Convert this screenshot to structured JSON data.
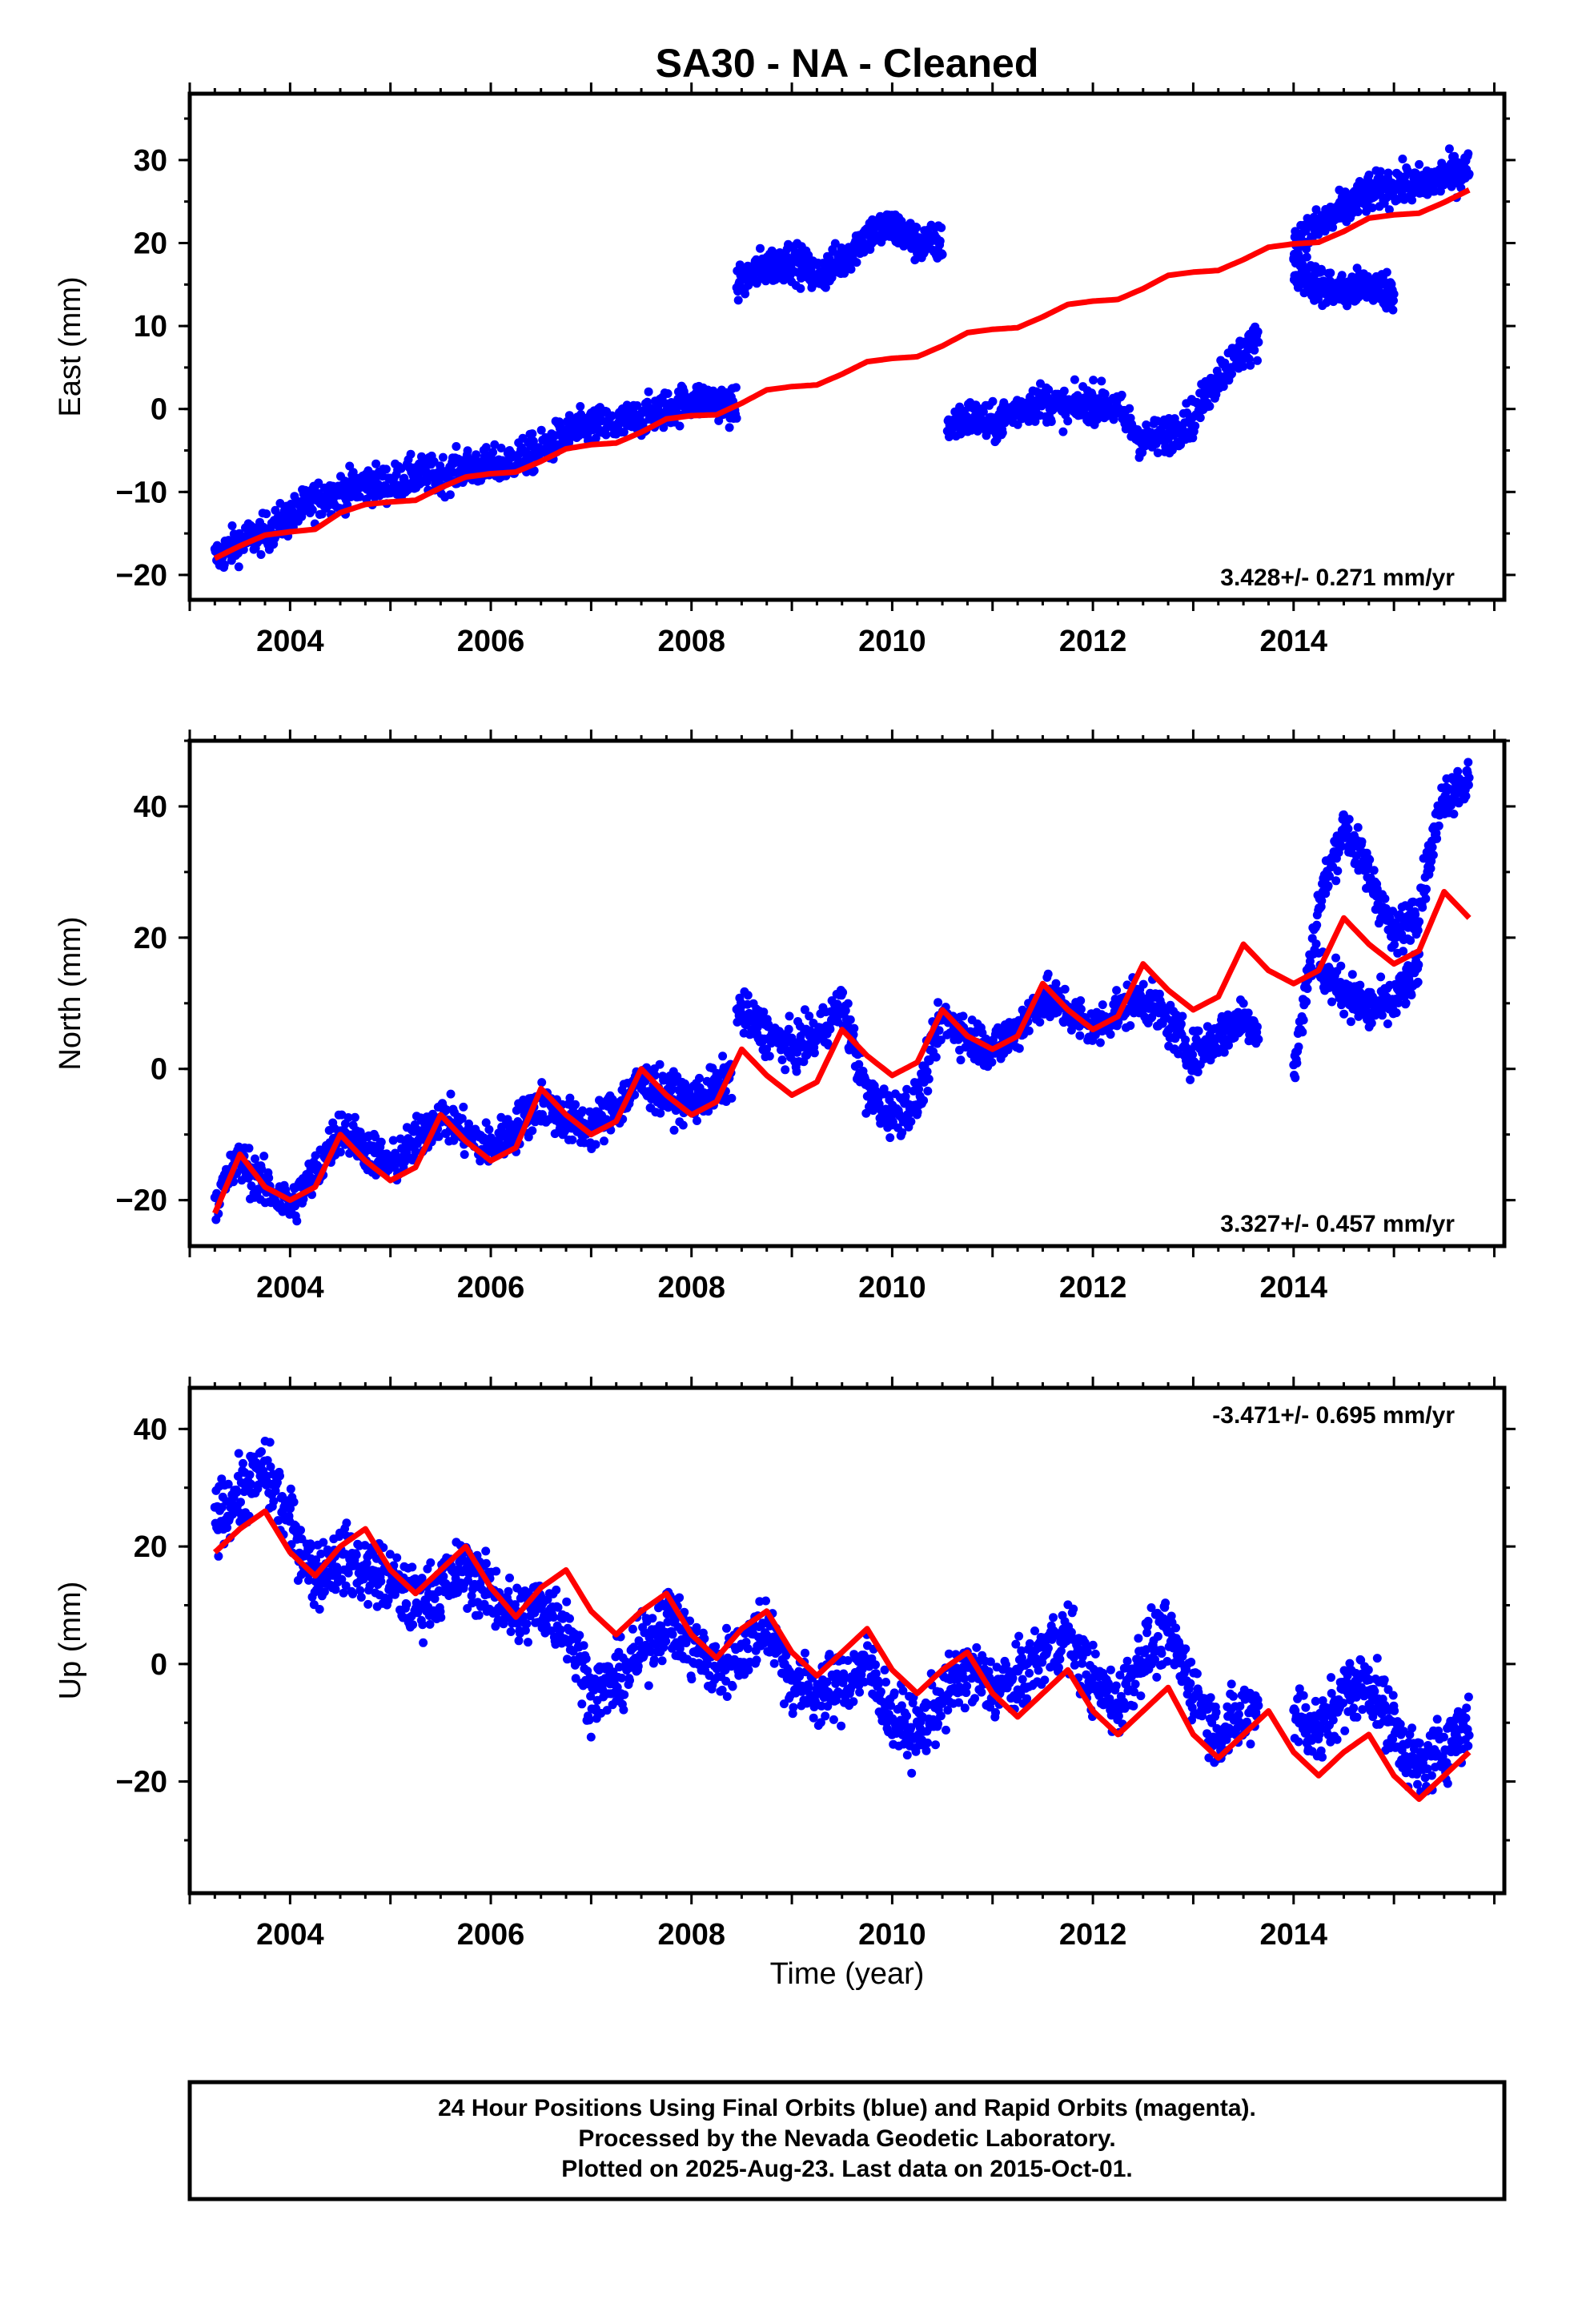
{
  "title": "SA30  - NA - Cleaned",
  "xlabel": "Time (year)",
  "footer": {
    "line1": "24 Hour Positions Using Final Orbits (blue) and Rapid Orbits (magenta).",
    "line2": "Processed by the Nevada Geodetic Laboratory.",
    "line3": "Plotted on 2025-Aug-23. Last data on 2015-Oct-01."
  },
  "colors": {
    "data": "#0000ff",
    "model": "#ff0000",
    "axes": "#000000"
  },
  "chart_data": [
    {
      "type": "scatter",
      "ylabel": "East (mm)",
      "rate": "3.428+/- 0.271 mm/yr",
      "xlim": [
        2003.0,
        2016.1
      ],
      "ylim": [
        -23,
        38
      ],
      "xticks": [
        2004,
        2006,
        2008,
        2010,
        2012,
        2014
      ],
      "yticks": [
        -20,
        -10,
        0,
        10,
        20,
        30
      ],
      "grid": false,
      "series": [
        {
          "role": "data",
          "segments": [
            {
              "x": [
                2003.25,
                2003.5,
                2003.75,
                2004.0,
                2004.25,
                2004.5,
                2004.75,
                2005.0,
                2005.25,
                2005.5,
                2005.75,
                2006.0,
                2006.25,
                2006.5,
                2006.75,
                2007.0,
                2007.25,
                2007.5,
                2007.75,
                2008.0,
                2008.25,
                2008.45
              ],
              "y": [
                -18,
                -16,
                -15,
                -13,
                -11,
                -10,
                -9,
                -9,
                -8,
                -8,
                -7,
                -7,
                -6,
                -5,
                -3,
                -2,
                -2,
                -1,
                0,
                1,
                1,
                0
              ]
            },
            {
              "x": [
                2008.45,
                2008.7,
                2009.0,
                2009.25,
                2009.5,
                2009.75,
                2010.0,
                2010.25,
                2010.5
              ],
              "y": [
                15,
                17,
                18,
                16,
                18,
                21,
                22,
                20,
                20
              ]
            },
            {
              "x": [
                2010.55,
                2010.8,
                2011.0,
                2011.25,
                2011.5,
                2011.75,
                2012.0,
                2012.25,
                2012.5,
                2012.75,
                2013.0,
                2013.25,
                2013.5,
                2013.65
              ],
              "y": [
                -2,
                -1,
                -2,
                0,
                1,
                0,
                1,
                0,
                -4,
                -3,
                -1,
                4,
                7,
                8
              ]
            },
            {
              "x": [
                2014.0,
                2014.25,
                2014.5,
                2014.75,
                2015.0,
                2015.25,
                2015.5,
                2015.75
              ],
              "y": [
                20,
                22,
                24,
                26,
                27,
                27,
                28,
                29
              ]
            },
            {
              "x": [
                2014.0,
                2014.25,
                2014.5,
                2014.75,
                2015.0
              ],
              "y": [
                17,
                15,
                14,
                15,
                14
              ]
            }
          ]
        },
        {
          "role": "model",
          "x": [
            2003.25,
            2003.5,
            2003.75,
            2004.0,
            2004.25,
            2004.5,
            2004.75,
            2005.0,
            2005.25,
            2005.5,
            2005.75,
            2006.0,
            2006.25,
            2006.5,
            2006.75,
            2007.0,
            2007.25,
            2007.5,
            2007.75,
            2008.0,
            2008.25,
            2008.5,
            2008.75,
            2009.0,
            2009.25,
            2009.5,
            2009.75,
            2010.0,
            2010.25,
            2010.5,
            2010.75,
            2011.0,
            2011.25,
            2011.5,
            2011.75,
            2012.0,
            2012.25,
            2012.5,
            2012.75,
            2013.0,
            2013.25,
            2013.5,
            2013.75,
            2014.0,
            2014.25,
            2014.5,
            2014.75,
            2015.0,
            2015.25,
            2015.5,
            2015.75
          ],
          "y": [
            -18,
            -16.5,
            -15.2,
            -14.8,
            -14.5,
            -12.5,
            -11.5,
            -11.2,
            -11,
            -9.5,
            -8.2,
            -7.8,
            -7.6,
            -6.3,
            -4.8,
            -4.3,
            -4.1,
            -2.8,
            -1.2,
            -0.8,
            -0.7,
            0.7,
            2.3,
            2.7,
            2.9,
            4.2,
            5.7,
            6.1,
            6.3,
            7.6,
            9.2,
            9.6,
            9.8,
            11.1,
            12.6,
            13,
            13.2,
            14.5,
            16.1,
            16.5,
            16.7,
            18,
            19.5,
            19.9,
            20.1,
            21.4,
            23,
            23.4,
            23.6,
            24.9,
            26.4
          ]
        }
      ]
    },
    {
      "type": "scatter",
      "ylabel": "North (mm)",
      "rate": "3.327+/- 0.457 mm/yr",
      "xlim": [
        2003.0,
        2016.1
      ],
      "ylim": [
        -27,
        50
      ],
      "xticks": [
        2004,
        2006,
        2008,
        2010,
        2012,
        2014
      ],
      "yticks": [
        -20,
        0,
        20,
        40
      ],
      "grid": false,
      "series": [
        {
          "role": "data",
          "segments": [
            {
              "x": [
                2003.25,
                2003.5,
                2003.75,
                2004.0,
                2004.25,
                2004.5,
                2004.75,
                2005.0,
                2005.25,
                2005.5,
                2005.75,
                2006.0,
                2006.25,
                2006.5,
                2006.75,
                2007.0,
                2007.25,
                2007.5,
                2007.75,
                2008.0,
                2008.25,
                2008.4
              ],
              "y": [
                -20,
                -14,
                -18,
                -21,
                -16,
                -9,
                -12,
                -15,
                -11,
                -7,
                -10,
                -12,
                -9,
                -5,
                -8,
                -9,
                -6,
                -2,
                -4,
                -5,
                -3,
                -1
              ]
            },
            {
              "x": [
                2008.45,
                2008.7,
                2009.0,
                2009.25,
                2009.5,
                2009.75,
                2010.0,
                2010.25,
                2010.5,
                2010.75,
                2011.0,
                2011.25,
                2011.5,
                2011.75,
                2012.0,
                2012.25,
                2012.5,
                2012.75,
                2013.0,
                2013.25,
                2013.5,
                2013.65
              ],
              "y": [
                9,
                6,
                3,
                5,
                10,
                -4,
                -7,
                -5,
                8,
                5,
                3,
                6,
                11,
                9,
                6,
                9,
                11,
                7,
                2,
                5,
                8,
                6
              ]
            },
            {
              "x": [
                2014.0,
                2014.25,
                2014.5,
                2014.75,
                2015.0,
                2015.25,
                2015.5,
                2015.75
              ],
              "y": [
                -1,
                25,
                37,
                30,
                20,
                25,
                42,
                44
              ]
            },
            {
              "x": [
                2014.25,
                2014.5,
                2014.75,
                2015.0,
                2015.25
              ],
              "y": [
                15,
                12,
                9,
                10,
                15
              ]
            }
          ]
        },
        {
          "role": "model",
          "x": [
            2003.25,
            2003.5,
            2003.75,
            2004.0,
            2004.25,
            2004.5,
            2004.75,
            2005.0,
            2005.25,
            2005.5,
            2005.75,
            2006.0,
            2006.25,
            2006.5,
            2006.75,
            2007.0,
            2007.25,
            2007.5,
            2007.75,
            2008.0,
            2008.25,
            2008.5,
            2008.75,
            2009.0,
            2009.25,
            2009.5,
            2009.75,
            2010.0,
            2010.25,
            2010.5,
            2010.75,
            2011.0,
            2011.25,
            2011.5,
            2011.75,
            2012.0,
            2012.25,
            2012.5,
            2012.75,
            2013.0,
            2013.25,
            2013.5,
            2013.75,
            2014.0,
            2014.25,
            2014.5,
            2014.75,
            2015.0,
            2015.25,
            2015.5,
            2015.75
          ],
          "y": [
            -22,
            -13,
            -18,
            -20,
            -18,
            -10,
            -14,
            -17,
            -15,
            -7,
            -11,
            -14,
            -12,
            -3,
            -7,
            -10,
            -8,
            0,
            -4,
            -7,
            -5,
            3,
            -1,
            -4,
            -2,
            6,
            2,
            -1,
            1,
            9,
            5,
            3,
            5,
            13,
            9,
            6,
            8,
            16,
            12,
            9,
            11,
            19,
            15,
            13,
            15,
            23,
            19,
            16,
            18,
            27,
            23
          ]
        }
      ]
    },
    {
      "type": "scatter",
      "ylabel": "Up (mm)",
      "rate": "-3.471+/- 0.695 mm/yr",
      "xlim": [
        2003.0,
        2016.1
      ],
      "ylim": [
        -39,
        47
      ],
      "xticks": [
        2004,
        2006,
        2008,
        2010,
        2012,
        2014
      ],
      "yticks": [
        -20,
        0,
        20,
        40
      ],
      "grid": false,
      "series": [
        {
          "role": "data",
          "segments": [
            {
              "x": [
                2003.25,
                2003.5,
                2003.75,
                2004.0,
                2004.25,
                2004.5,
                2004.75,
                2005.0,
                2005.25,
                2005.5,
                2005.75,
                2006.0,
                2006.25,
                2006.5,
                2006.75,
                2007.0,
                2007.25,
                2007.5,
                2007.75,
                2008.0,
                2008.25,
                2008.5,
                2008.75,
                2009.0,
                2009.25,
                2009.5,
                2009.75,
                2010.0,
                2010.25,
                2010.5,
                2010.75,
                2011.0,
                2011.25,
                2011.5,
                2011.75,
                2012.0,
                2012.25,
                2012.5,
                2012.75,
                2013.0,
                2013.25,
                2013.5,
                2013.65
              ],
              "y": [
                25,
                29,
                33,
                24,
                15,
                18,
                16,
                14,
                10,
                13,
                16,
                12,
                8,
                10,
                7,
                -5,
                -3,
                2,
                8,
                3,
                -1,
                2,
                7,
                -3,
                -5,
                -4,
                0,
                -9,
                -12,
                -6,
                -1,
                -4,
                -3,
                2,
                5,
                -3,
                -7,
                2,
                5,
                -4,
                -12,
                -9,
                -6
              ]
            },
            {
              "x": [
                2014.0,
                2014.25,
                2014.5,
                2014.75,
                2015.0,
                2015.25,
                2015.5,
                2015.75
              ],
              "y": [
                -8,
                -12,
                -5,
                -3,
                -11,
                -18,
                -14,
                -10
              ]
            }
          ]
        },
        {
          "role": "model",
          "x": [
            2003.25,
            2003.5,
            2003.75,
            2004.0,
            2004.25,
            2004.5,
            2004.75,
            2005.0,
            2005.25,
            2005.5,
            2005.75,
            2006.0,
            2006.25,
            2006.5,
            2006.75,
            2007.0,
            2007.25,
            2007.5,
            2007.75,
            2008.0,
            2008.25,
            2008.5,
            2008.75,
            2009.0,
            2009.25,
            2009.5,
            2009.75,
            2010.0,
            2010.25,
            2010.5,
            2010.75,
            2011.0,
            2011.25,
            2011.5,
            2011.75,
            2012.0,
            2012.25,
            2012.5,
            2012.75,
            2013.0,
            2013.25,
            2013.5,
            2013.75,
            2014.0,
            2014.25,
            2014.5,
            2014.75,
            2015.0,
            2015.25,
            2015.5,
            2015.75
          ],
          "y": [
            19,
            23,
            26,
            19,
            15,
            20,
            23,
            16,
            12,
            16,
            20,
            13,
            8,
            13,
            16,
            9,
            5,
            9,
            12,
            5,
            1,
            6,
            9,
            2,
            -2,
            2,
            6,
            -1,
            -5,
            -1,
            2,
            -5,
            -9,
            -5,
            -1,
            -8,
            -12,
            -8,
            -4,
            -12,
            -16,
            -12,
            -8,
            -15,
            -19,
            -15,
            -12,
            -19,
            -23,
            -19,
            -15
          ]
        }
      ]
    }
  ]
}
